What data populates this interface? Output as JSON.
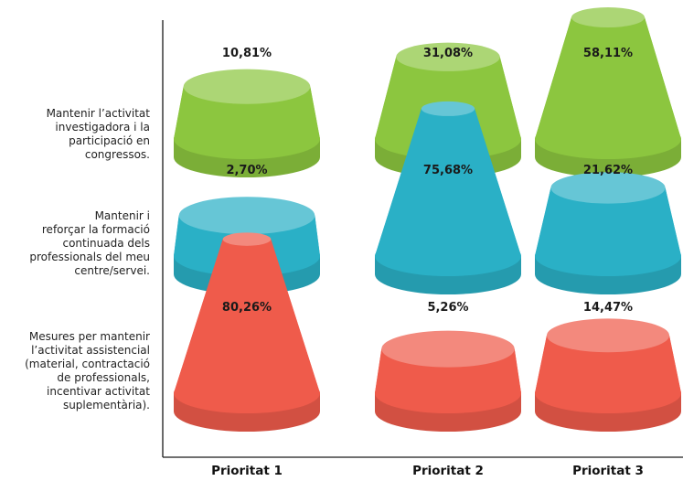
{
  "chart_data": {
    "type": "bar",
    "title": "",
    "xlabel": "",
    "ylabel": "",
    "categories": [
      "Prioritat 1",
      "Prioritat 2",
      "Prioritat 3"
    ],
    "rows": [
      {
        "label_lines": [
          "Mantenir l’activitat",
          "investigadora i la",
          "participació en",
          "congressos."
        ],
        "color": "#8cc63f",
        "values": [
          10.81,
          31.08,
          58.11
        ],
        "value_labels": [
          "10,81%",
          "31,08%",
          "58,11%"
        ]
      },
      {
        "label_lines": [
          "Mantenir i",
          "reforçar la formació",
          "continuada dels",
          "professionals del meu",
          "centre/servei."
        ],
        "color": "#2ab0c6",
        "values": [
          2.7,
          75.68,
          21.62
        ],
        "value_labels": [
          "2,70%",
          "75,68%",
          "21,62%"
        ]
      },
      {
        "label_lines": [
          "Mesures per mantenir",
          "l’activitat assistencial",
          "(material, contractació",
          "de professionals,",
          "incentivar activitat",
          "suplementària)."
        ],
        "color": "#ef5b4b",
        "values": [
          80.26,
          5.26,
          14.47
        ],
        "value_labels": [
          "80,26%",
          "5,26%",
          "14,47%"
        ]
      }
    ],
    "grid": false,
    "legend": "none"
  }
}
